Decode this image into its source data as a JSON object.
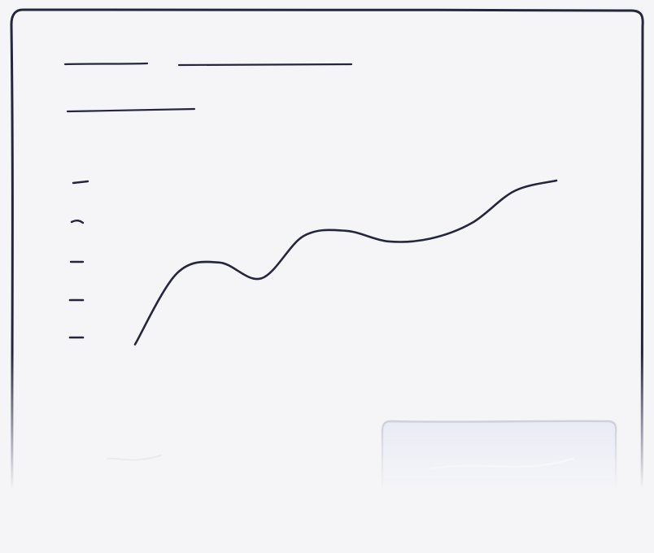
{
  "chart_data": {
    "type": "line",
    "title": "",
    "subtitle": "",
    "xlabel": "",
    "ylabel": "",
    "grid": false,
    "legend": "none",
    "x": [
      0,
      1,
      2,
      3,
      4,
      5,
      6,
      7,
      8,
      9,
      10
    ],
    "series": [
      {
        "values": [
          0.2,
          2.9,
          3.3,
          2.7,
          4.3,
          4.5,
          4.1,
          4.2,
          4.8,
          6.0,
          6.4
        ],
        "color": "#25263d"
      }
    ],
    "ylim": [
      0,
      8
    ]
  },
  "colors": {
    "background": "#f5f5f8",
    "ink": "#25263d",
    "frame": "#25263d",
    "ghost_stroke": "#c4c6cf",
    "panel_fill": "#dde0f3",
    "panel_stroke": "#a9abb8"
  }
}
